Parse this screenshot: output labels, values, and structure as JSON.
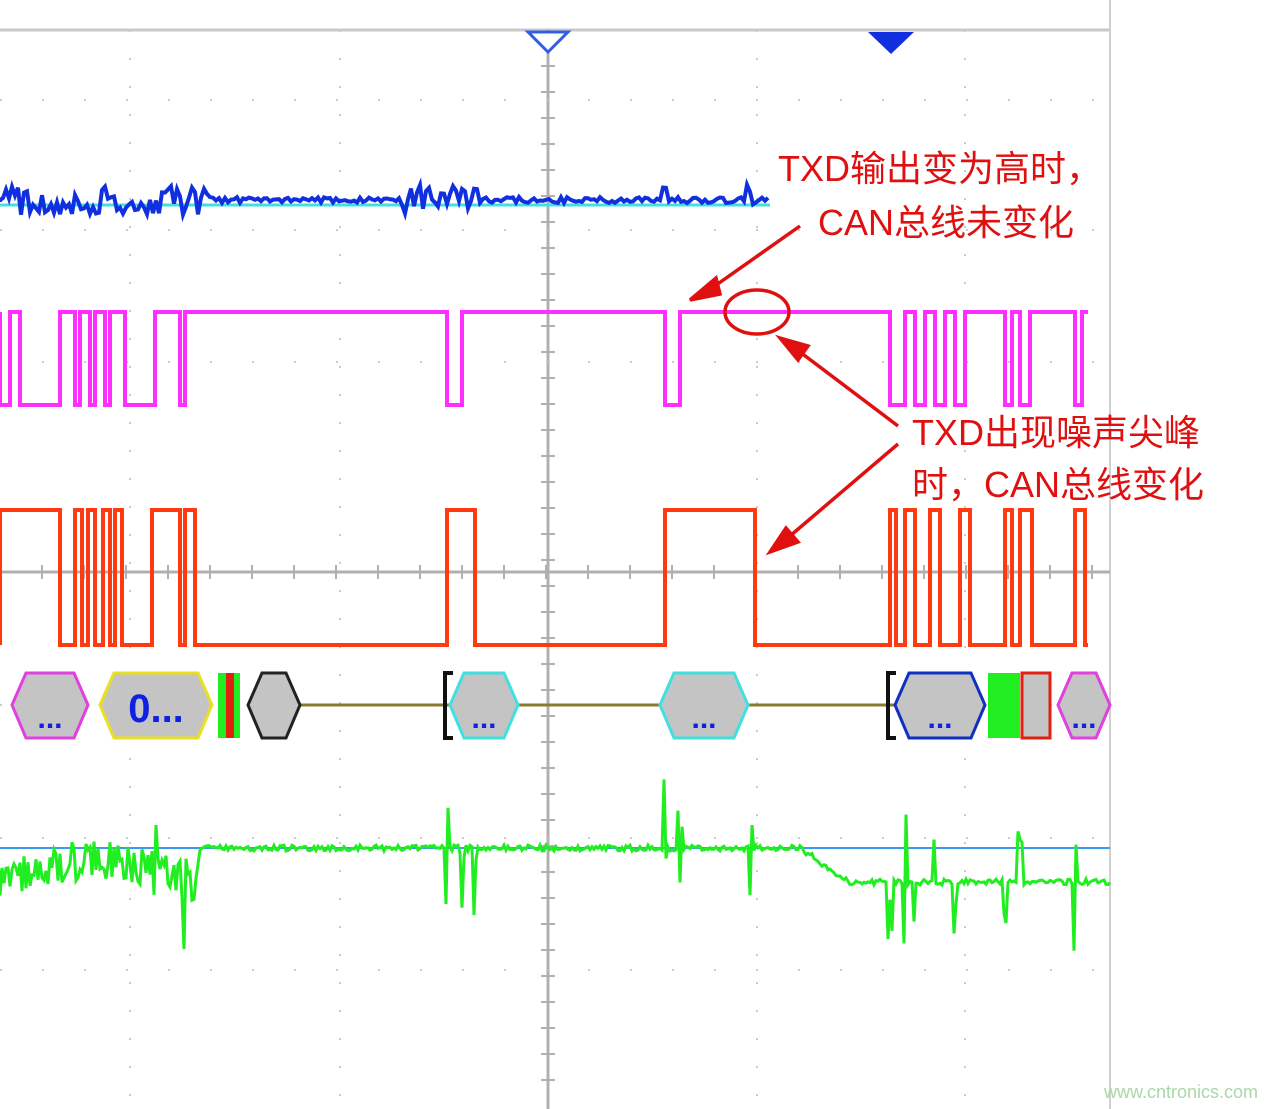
{
  "annotations": {
    "top_line1": "TXD输出变为高时，",
    "top_line2": "CAN总线未变化",
    "right_line1": "TXD出现噪声尖峰",
    "right_line2": "时，CAN总线变化"
  },
  "decode_labels": [
    "...",
    "0...",
    "...",
    "...",
    "...",
    "..."
  ],
  "watermark": "www.cntronics.com",
  "colors": {
    "trace_blue": "#1030e0",
    "trace_cyan": "#40e0e0",
    "trace_magenta": "#ff30ff",
    "trace_red": "#ff3a10",
    "trace_green": "#20ee20",
    "annotation": "#e01010",
    "grid": "#b0b0b0"
  }
}
